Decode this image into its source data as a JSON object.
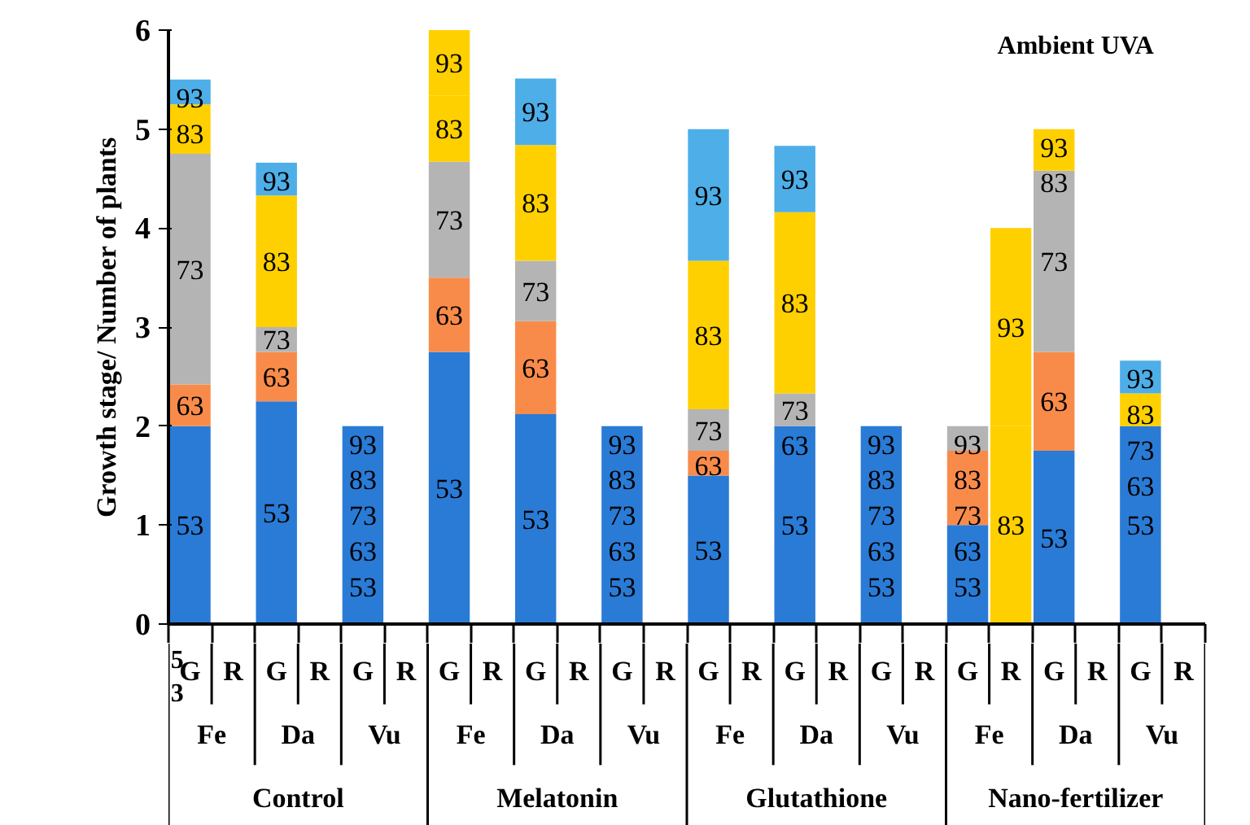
{
  "chart_data": {
    "type": "bar",
    "stacked": true,
    "title": "Ambient UVA",
    "ylabel": "Growth stage/ Number of plants",
    "categories": [
      "G",
      "R",
      "G",
      "R",
      "G",
      "R",
      "G",
      "R",
      "G",
      "R",
      "G",
      "R",
      "G",
      "R",
      "G",
      "R",
      "G",
      "R",
      "G",
      "R",
      "G",
      "R",
      "G",
      "R"
    ],
    "series": [
      {
        "name": "53",
        "color": "#2a7bd6",
        "values": [
          2,
          null,
          2.25,
          null,
          2,
          null,
          2.75,
          null,
          2.12,
          null,
          2,
          null,
          1.5,
          null,
          2,
          null,
          2,
          null,
          1,
          null,
          1.75,
          null,
          2,
          null
        ]
      },
      {
        "name": "63",
        "color": "#f98b4a",
        "values": [
          0.42,
          null,
          0.5,
          null,
          0,
          null,
          0.75,
          null,
          0.94,
          null,
          0,
          null,
          0.25,
          null,
          0,
          null,
          0,
          null,
          0.75,
          null,
          1.0,
          null,
          0,
          null
        ]
      },
      {
        "name": "73",
        "color": "#b4b4b4",
        "values": [
          2.33,
          null,
          0.25,
          null,
          0,
          null,
          1.17,
          null,
          0.61,
          null,
          0,
          null,
          0.42,
          null,
          0.33,
          null,
          0,
          null,
          0.25,
          null,
          1.83,
          null,
          0,
          null
        ]
      },
      {
        "name": "83",
        "color": "#ffd000",
        "values": [
          0.5,
          null,
          1.33,
          null,
          0,
          null,
          0.67,
          null,
          1.17,
          null,
          0,
          null,
          1.5,
          null,
          1.83,
          null,
          0,
          null,
          0,
          2,
          0.42,
          null,
          0.33,
          null
        ]
      },
      {
        "name": "93",
        "color": "#4eaee8",
        "colors": [
          null,
          null,
          null,
          null,
          null,
          null,
          "#ffd000",
          null,
          null,
          null,
          null,
          null,
          null,
          null,
          null,
          null,
          null,
          null,
          null,
          "#ffd000",
          null,
          null,
          null,
          null
        ],
        "values": [
          0.25,
          null,
          0.33,
          null,
          0,
          null,
          0.67,
          null,
          0.67,
          null,
          0,
          null,
          1.33,
          null,
          0.67,
          null,
          0,
          null,
          0,
          2,
          0,
          null,
          0.33,
          null
        ]
      }
    ],
    "ylim": [
      0,
      6
    ],
    "yticks": [
      0,
      1,
      2,
      3,
      4,
      5,
      6
    ],
    "annotations": [
      "Fe",
      "Da",
      "Vu",
      "Fe",
      "Da",
      "Vu",
      "Fe",
      "Da",
      "Vu",
      "Fe",
      "Da",
      "Vu",
      "Control",
      "Melatonin",
      "Glutathione",
      "Nano-fertilizer",
      "5\n3"
    ]
  }
}
